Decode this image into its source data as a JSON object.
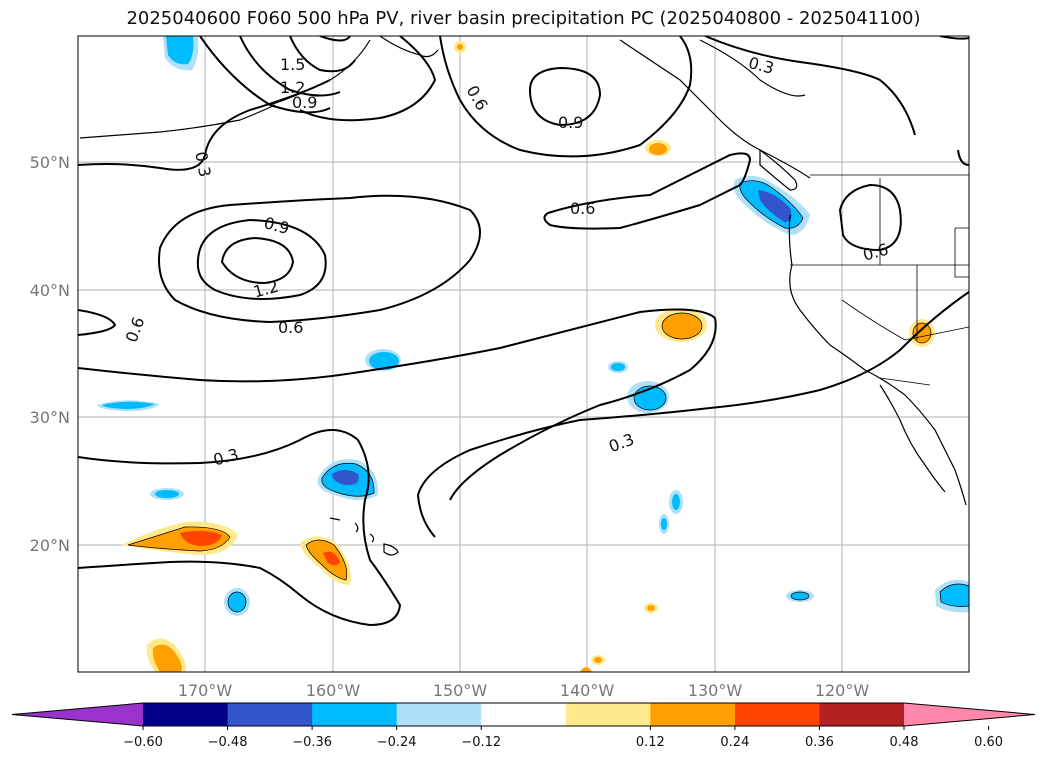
{
  "title": "2025040600 F060 500 hPa PV, river basin precipitation PC (2025040800 - 2025041100)",
  "lat_labels": [
    "50°N",
    "40°N",
    "30°N",
    "20°N"
  ],
  "lon_labels": [
    "170°W",
    "160°W",
    "150°W",
    "140°W",
    "130°W",
    "120°W"
  ],
  "contour_labels": [
    "1.5",
    "1.2",
    "0.9",
    "0.3",
    "0.6",
    "0.9",
    "0.3",
    "0.6",
    "0.9",
    "1.2",
    "0.6",
    "0.6",
    "0.6",
    "0.3",
    "0.3"
  ],
  "colorbar": {
    "ticks": [
      "−0.60",
      "−0.48",
      "−0.36",
      "−0.24",
      "−0.12",
      "0.12",
      "0.24",
      "0.36",
      "0.48",
      "0.60"
    ],
    "colors": [
      "#9933cc",
      "#000088",
      "#3355cc",
      "#00bbff",
      "#aee0f8",
      "#ffffff",
      "#ffe98a",
      "#ffa000",
      "#ff4400",
      "#b22222",
      "#ff88aa"
    ]
  }
}
